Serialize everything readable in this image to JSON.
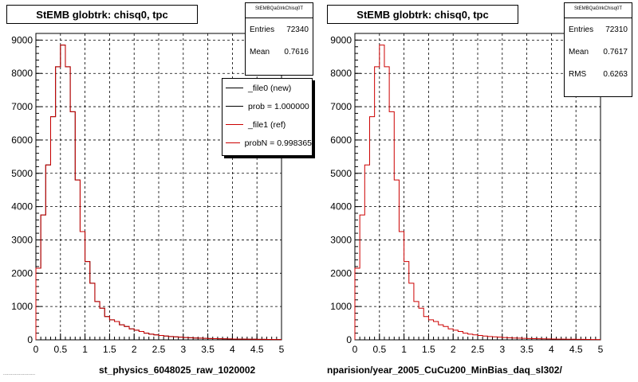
{
  "chart_data": [
    {
      "type": "histogram",
      "title": "StEMB globtrk: chisq0, tpc",
      "stats_header": "StEMBQaGlrkChisq0T",
      "stats": [
        {
          "label": "Entries",
          "value": "72340"
        },
        {
          "label": "Mean",
          "value": "0.7616"
        }
      ],
      "legend": [
        {
          "label": "_file0 (new)",
          "color": "#000000"
        },
        {
          "label": "prob = 1.000000",
          "color": "#000000"
        },
        {
          "label": "_file1 (ref)",
          "color": "#cc0000"
        },
        {
          "label": "probN = 0.998365",
          "color": "#cc0000"
        }
      ],
      "xlabel": "st_physics_6048025_raw_1020002",
      "xlim": [
        0,
        5
      ],
      "ylim": [
        0,
        9200
      ],
      "xticks": [
        "0",
        "0.5",
        "1",
        "1.5",
        "2",
        "2.5",
        "3",
        "3.5",
        "4",
        "4.5",
        "5"
      ],
      "yticks": [
        "0",
        "1000",
        "2000",
        "3000",
        "4000",
        "5000",
        "6000",
        "7000",
        "8000",
        "9000"
      ],
      "grid": true,
      "bin_width": 0.1,
      "series": [
        {
          "color": "#000000",
          "values": [
            2150,
            3750,
            5250,
            6700,
            8200,
            8850,
            8200,
            6850,
            4800,
            3250,
            2350,
            1700,
            1150,
            950,
            700,
            600,
            550,
            450,
            400,
            330,
            290,
            250,
            200,
            170,
            150,
            130,
            115,
            100,
            90,
            80,
            70,
            62,
            55,
            50,
            45,
            40,
            35,
            32,
            30,
            27,
            25,
            22,
            20,
            19,
            17,
            15,
            14,
            12,
            10,
            9
          ]
        },
        {
          "color": "#cc0000",
          "values": [
            2150,
            3750,
            5250,
            6700,
            8200,
            8850,
            8200,
            6850,
            4800,
            3250,
            2350,
            1700,
            1150,
            950,
            700,
            600,
            550,
            450,
            400,
            330,
            290,
            250,
            200,
            170,
            150,
            130,
            115,
            100,
            90,
            80,
            70,
            62,
            55,
            50,
            45,
            40,
            35,
            32,
            30,
            27,
            25,
            22,
            20,
            19,
            17,
            15,
            14,
            12,
            10,
            9
          ]
        }
      ]
    },
    {
      "type": "histogram",
      "title": "StEMB globtrk: chisq0, tpc",
      "stats_header": "StEMBQaGlrkChisq0T",
      "stats": [
        {
          "label": "Entries",
          "value": "72310"
        },
        {
          "label": "Mean",
          "value": "0.7617"
        },
        {
          "label": "RMS",
          "value": "0.6263"
        }
      ],
      "xlabel": "nparision/year_2005_CuCu200_MinBias_daq_sl302/",
      "xlim": [
        0,
        5
      ],
      "ylim": [
        0,
        9200
      ],
      "xticks": [
        "0",
        "0.5",
        "1",
        "1.5",
        "2",
        "2.5",
        "3",
        "3.5",
        "4",
        "4.5",
        "5"
      ],
      "yticks": [
        "0",
        "1000",
        "2000",
        "3000",
        "4000",
        "5000",
        "6000",
        "7000",
        "8000",
        "9000"
      ],
      "grid": true,
      "bin_width": 0.1,
      "series": [
        {
          "color": "#cc0000",
          "values": [
            2150,
            3750,
            5250,
            6700,
            8200,
            8850,
            8200,
            6850,
            4800,
            3250,
            2350,
            1700,
            1150,
            950,
            700,
            600,
            550,
            450,
            400,
            330,
            290,
            250,
            200,
            170,
            150,
            130,
            115,
            100,
            90,
            80,
            70,
            62,
            55,
            50,
            45,
            40,
            35,
            32,
            30,
            27,
            25,
            22,
            20,
            19,
            17,
            15,
            14,
            12,
            10,
            9
          ]
        }
      ]
    }
  ],
  "stamp": "........................"
}
